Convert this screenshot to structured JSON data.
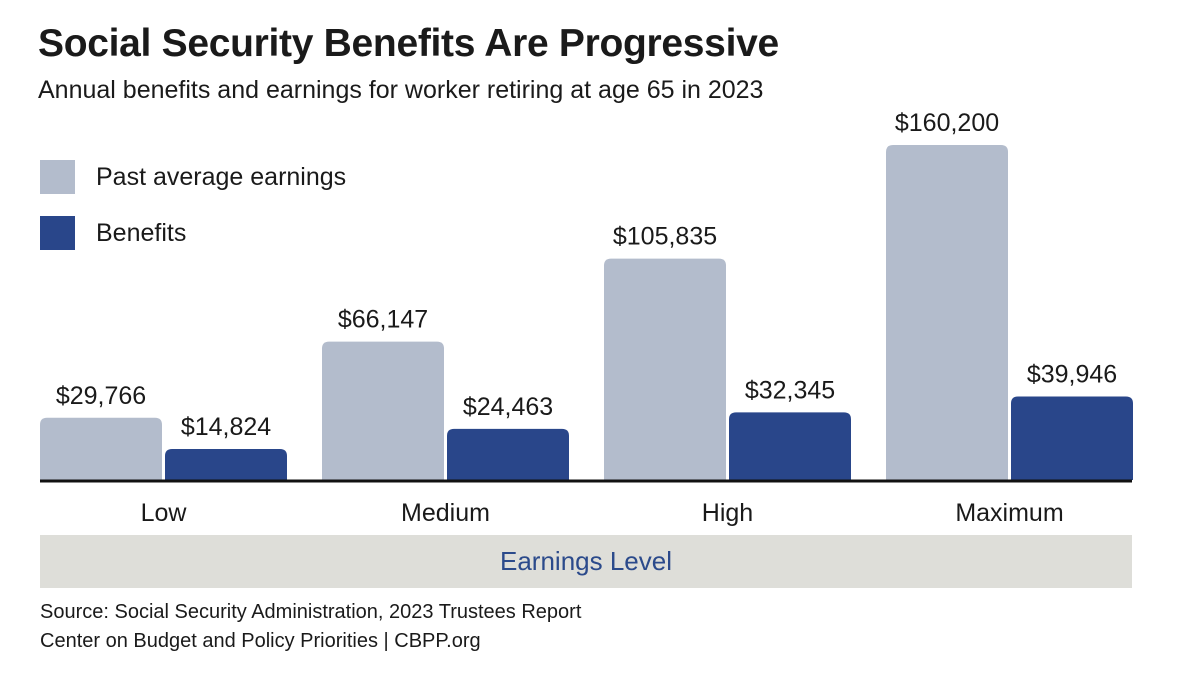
{
  "colors": {
    "earnings": "#b3bccc",
    "benefits": "#29468a",
    "axis_band": "#deded9",
    "axis_label": "#2b4a8b",
    "baseline": "#111111"
  },
  "chart_data": {
    "type": "bar",
    "title": "Social Security Benefits Are Progressive",
    "subtitle": "Annual benefits and earnings for worker retiring at age 65 in 2023",
    "xlabel": "Earnings Level",
    "ylabel": "",
    "ylim": [
      0,
      160200
    ],
    "grid": false,
    "legend_position": "top-left",
    "categories": [
      "Low",
      "Medium",
      "High",
      "Maximum"
    ],
    "series": [
      {
        "name": "Past average earnings",
        "color_key": "earnings",
        "values": [
          29766,
          66147,
          105835,
          160200
        ],
        "labels": [
          "$29,766",
          "$66,147",
          "$105,835",
          "$160,200"
        ]
      },
      {
        "name": "Benefits",
        "color_key": "benefits",
        "values": [
          14824,
          24463,
          32345,
          39946
        ],
        "labels": [
          "$14,824",
          "$24,463",
          "$32,345",
          "$39,946"
        ]
      }
    ]
  },
  "footer": {
    "source": "Source: Social Security Administration, 2023 Trustees Report",
    "org": "Center on Budget and Policy Priorities | CBPP.org"
  }
}
